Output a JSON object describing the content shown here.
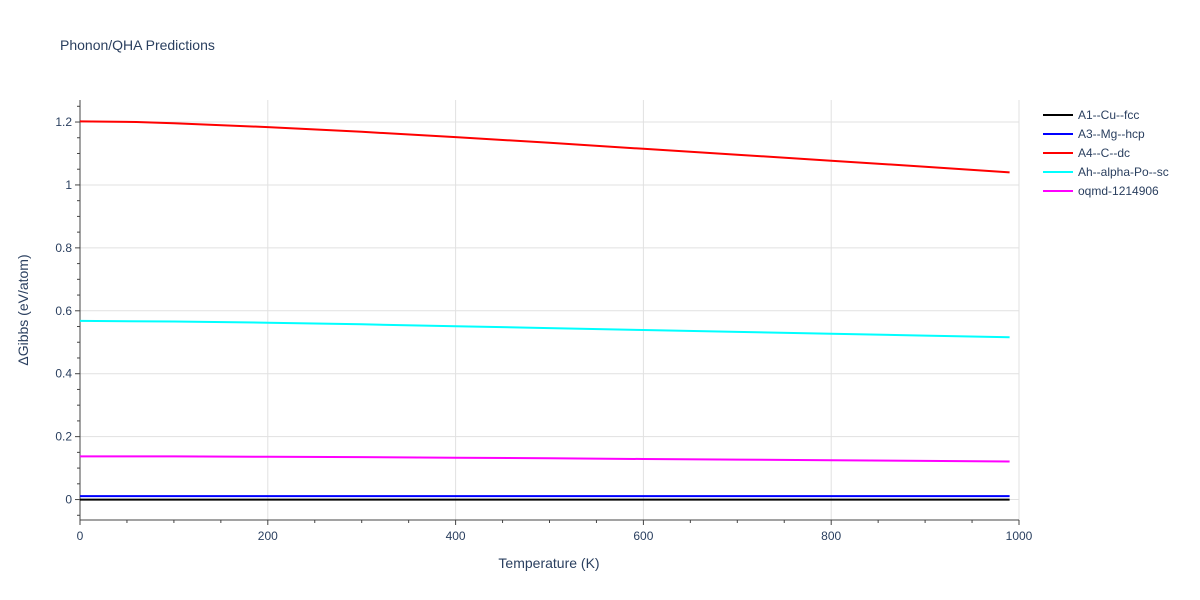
{
  "chart_data": {
    "type": "line",
    "title": "Phonon/QHA Predictions",
    "xlabel": "Temperature (K)",
    "ylabel": "ΔGibbs (eV/atom)",
    "xlim": [
      0,
      1000
    ],
    "ylim": [
      -0.065,
      1.27
    ],
    "x_ticks": [
      0,
      200,
      400,
      600,
      800,
      1000
    ],
    "x_tick_labels": [
      "0",
      "200",
      "400",
      "600",
      "800",
      "1000"
    ],
    "y_ticks": [
      0,
      0.2,
      0.4,
      0.6,
      0.8,
      1,
      1.2
    ],
    "y_tick_labels": [
      "0",
      "0.2",
      "0.4",
      "0.6",
      "0.8",
      "1",
      "1.2"
    ],
    "grid": true,
    "legend_position": "top-right",
    "series": [
      {
        "name": "A1--Cu--fcc",
        "color": "#000000",
        "x": [
          0,
          100,
          200,
          300,
          400,
          500,
          600,
          700,
          800,
          900,
          990
        ],
        "y": [
          0,
          0,
          0,
          0,
          0,
          0,
          0,
          0,
          0,
          0,
          0
        ]
      },
      {
        "name": "A3--Mg--hcp",
        "color": "#0000ff",
        "x": [
          0,
          100,
          200,
          300,
          400,
          500,
          600,
          700,
          800,
          900,
          990
        ],
        "y": [
          0.011,
          0.011,
          0.011,
          0.011,
          0.011,
          0.011,
          0.011,
          0.011,
          0.011,
          0.011,
          0.011
        ]
      },
      {
        "name": "A4--C--dc",
        "color": "#ff0000",
        "x": [
          0,
          60,
          100,
          200,
          300,
          400,
          500,
          600,
          700,
          800,
          900,
          990
        ],
        "y": [
          1.202,
          1.2,
          1.196,
          1.184,
          1.169,
          1.152,
          1.134,
          1.115,
          1.096,
          1.077,
          1.058,
          1.04
        ]
      },
      {
        "name": "Ah--alpha-Po--sc",
        "color": "#00ffff",
        "x": [
          0,
          100,
          200,
          300,
          400,
          500,
          600,
          700,
          800,
          900,
          990
        ],
        "y": [
          0.568,
          0.566,
          0.562,
          0.557,
          0.551,
          0.545,
          0.539,
          0.533,
          0.527,
          0.521,
          0.516
        ]
      },
      {
        "name": "oqmd-1214906",
        "color": "#ff00ff",
        "x": [
          0,
          100,
          200,
          300,
          400,
          500,
          600,
          700,
          800,
          900,
          990
        ],
        "y": [
          0.137,
          0.137,
          0.136,
          0.135,
          0.133,
          0.131,
          0.129,
          0.127,
          0.125,
          0.123,
          0.121
        ]
      }
    ]
  }
}
